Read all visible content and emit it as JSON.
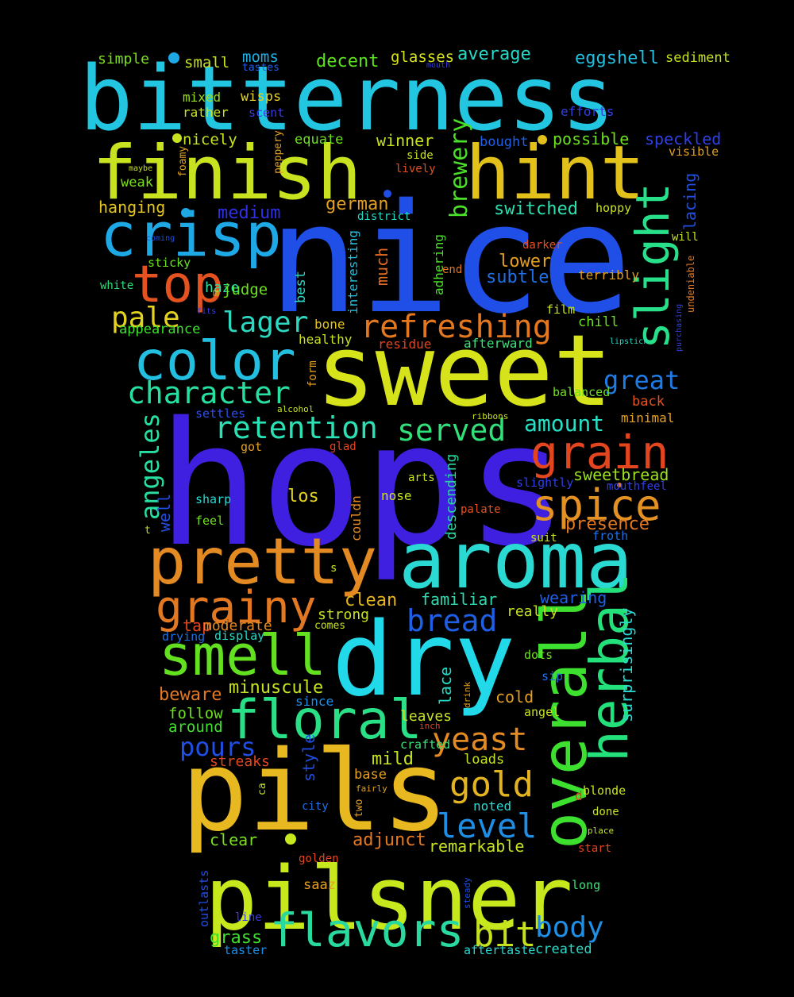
{
  "words": [
    {
      "text": "bitterness",
      "color": "#22c6e0"
    },
    {
      "text": "nice",
      "color": "#1f4fe6"
    },
    {
      "text": "hops",
      "color": "#4020e0"
    },
    {
      "text": "sweet",
      "color": "#d7e31a"
    },
    {
      "text": "dry",
      "color": "#22d9ea"
    },
    {
      "text": "pils",
      "color": "#e8b820"
    },
    {
      "text": "pilsner",
      "color": "#c6e81c"
    },
    {
      "text": "finish",
      "color": "#c9e220"
    },
    {
      "text": "hint",
      "color": "#e2c21a"
    },
    {
      "text": "aroma",
      "color": "#2ad9d2"
    },
    {
      "text": "pretty",
      "color": "#e38a22"
    },
    {
      "text": "smell",
      "color": "#63e01f"
    },
    {
      "text": "color",
      "color": "#23bfe0"
    },
    {
      "text": "crisp",
      "color": "#1ea9e6"
    },
    {
      "text": "floral",
      "color": "#2ae087"
    },
    {
      "text": "overall",
      "color": "#3de02e"
    },
    {
      "text": "herbal",
      "color": "#24e07a"
    },
    {
      "text": "grainy",
      "color": "#e37822"
    },
    {
      "text": "flavors",
      "color": "#2ad9a0"
    },
    {
      "text": "top",
      "color": "#e3521f"
    },
    {
      "text": "grain",
      "color": "#e3451f"
    },
    {
      "text": "spice",
      "color": "#e39122"
    },
    {
      "text": "slight",
      "color": "#27e089"
    },
    {
      "text": "refreshing",
      "color": "#e3781f"
    },
    {
      "text": "character",
      "color": "#27e0a0"
    },
    {
      "text": "retention",
      "color": "#2ae0b5"
    },
    {
      "text": "served",
      "color": "#31e07a"
    },
    {
      "text": "lager",
      "color": "#2ad9c0"
    },
    {
      "text": "pale",
      "color": "#e3d21f"
    },
    {
      "text": "bread",
      "color": "#1f5fe6"
    },
    {
      "text": "yeast",
      "color": "#e38a22"
    },
    {
      "text": "gold",
      "color": "#e3b420"
    },
    {
      "text": "level",
      "color": "#1f8fe6"
    },
    {
      "text": "pours",
      "color": "#1f4fe6"
    },
    {
      "text": "bit",
      "color": "#c6e01c"
    },
    {
      "text": "body",
      "color": "#1f8fe6"
    },
    {
      "text": "great",
      "color": "#1f7be6"
    },
    {
      "text": "angeles",
      "color": "#27e0a0"
    },
    {
      "text": "brewery",
      "color": "#4ae02a"
    },
    {
      "text": "amount",
      "color": "#27e0c6"
    },
    {
      "text": "presence",
      "color": "#e3781f"
    },
    {
      "text": "medium",
      "color": "#3030e6"
    },
    {
      "text": "lower",
      "color": "#e3a020"
    },
    {
      "text": "german",
      "color": "#e3a020"
    },
    {
      "text": "subtle",
      "color": "#1f6fe6"
    },
    {
      "text": "sweetbread",
      "color": "#9ae01c"
    },
    {
      "text": "clean",
      "color": "#e3b420"
    },
    {
      "text": "familiar",
      "color": "#31d9b0"
    },
    {
      "text": "wearing",
      "color": "#1f5fe6"
    },
    {
      "text": "really",
      "color": "#c6e01c"
    },
    {
      "text": "switched",
      "color": "#2ae0b0"
    },
    {
      "text": "winner",
      "color": "#c9e220"
    },
    {
      "text": "possible",
      "color": "#6ce01c"
    },
    {
      "text": "speckled",
      "color": "#2f3fe6"
    },
    {
      "text": "eggshell",
      "color": "#23bfe0"
    },
    {
      "text": "average",
      "color": "#27d9c6"
    },
    {
      "text": "glasses",
      "color": "#d7e31a"
    },
    {
      "text": "decent",
      "color": "#5ae01c"
    },
    {
      "text": "moms",
      "color": "#1fb0e6"
    },
    {
      "text": "small",
      "color": "#c9e220"
    },
    {
      "text": "simple",
      "color": "#7ae01c"
    },
    {
      "text": "sediment",
      "color": "#c6e01c"
    },
    {
      "text": "wisps",
      "color": "#e3d21f"
    },
    {
      "text": "mixed",
      "color": "#9ae01c"
    },
    {
      "text": "rather",
      "color": "#c9e220"
    },
    {
      "text": "scent",
      "color": "#3a3ae6"
    },
    {
      "text": "efforts",
      "color": "#2f3fe6"
    },
    {
      "text": "nicely",
      "color": "#c9e220"
    },
    {
      "text": "equate",
      "color": "#6ce01c"
    },
    {
      "text": "bought",
      "color": "#1f5fe6"
    },
    {
      "text": "visible",
      "color": "#e3a020"
    },
    {
      "text": "weak",
      "color": "#7ae01c"
    },
    {
      "text": "hanging",
      "color": "#e3c420"
    },
    {
      "text": "side",
      "color": "#c9e220"
    },
    {
      "text": "lively",
      "color": "#e3521f"
    },
    {
      "text": "hoppy",
      "color": "#c9e220"
    },
    {
      "text": "lacing",
      "color": "#1f4fe6"
    },
    {
      "text": "will",
      "color": "#c6e01c"
    },
    {
      "text": "district",
      "color": "#27d9c6"
    },
    {
      "text": "adhering",
      "color": "#4ae02a"
    },
    {
      "text": "much",
      "color": "#e36a1f"
    },
    {
      "text": "interesting",
      "color": "#23bfe0"
    },
    {
      "text": "best",
      "color": "#27d9c6"
    },
    {
      "text": "haze",
      "color": "#2fe0a0"
    },
    {
      "text": "judge",
      "color": "#6ce01c"
    },
    {
      "text": "sticky",
      "color": "#6ce01c"
    },
    {
      "text": "white",
      "color": "#27e07a"
    },
    {
      "text": "appearance",
      "color": "#3de02e"
    },
    {
      "text": "darker",
      "color": "#e3521f"
    },
    {
      "text": "end",
      "color": "#e3781f"
    },
    {
      "text": "terribly",
      "color": "#e3a020"
    },
    {
      "text": "film",
      "color": "#c9e220"
    },
    {
      "text": "chill",
      "color": "#6ce01c"
    },
    {
      "text": "bone",
      "color": "#e3c420"
    },
    {
      "text": "healthy",
      "color": "#c9e220"
    },
    {
      "text": "residue",
      "color": "#e3451f"
    },
    {
      "text": "afterward",
      "color": "#3de07a"
    },
    {
      "text": "balanced",
      "color": "#6ce01c"
    },
    {
      "text": "back",
      "color": "#e3521f"
    },
    {
      "text": "minimal",
      "color": "#e3a020"
    },
    {
      "text": "settles",
      "color": "#2f4fe6"
    },
    {
      "text": "form",
      "color": "#e3a020"
    },
    {
      "text": "alcohol",
      "color": "#c9e220"
    },
    {
      "text": "ribbons",
      "color": "#c9e220"
    },
    {
      "text": "got",
      "color": "#e3a020"
    },
    {
      "text": "glad",
      "color": "#e3451f"
    },
    {
      "text": "well",
      "color": "#1f4fe6"
    },
    {
      "text": "sharp",
      "color": "#2ad9d2"
    },
    {
      "text": "feel",
      "color": "#6ce01c"
    },
    {
      "text": "los",
      "color": "#e3d21f"
    },
    {
      "text": "nose",
      "color": "#c9e220"
    },
    {
      "text": "couldn",
      "color": "#e38a22"
    },
    {
      "text": "descending",
      "color": "#27d9a0"
    },
    {
      "text": "arts",
      "color": "#c9e220"
    },
    {
      "text": "slightly",
      "color": "#2f3fe6"
    },
    {
      "text": "mouthfeel",
      "color": "#2f3fe6"
    },
    {
      "text": "palate",
      "color": "#e3521f"
    },
    {
      "text": "suit",
      "color": "#c9e220"
    },
    {
      "text": "froth",
      "color": "#1f6fe6"
    },
    {
      "text": "tap",
      "color": "#e3451f"
    },
    {
      "text": "moderate",
      "color": "#e38a22"
    },
    {
      "text": "strong",
      "color": "#c9e220"
    },
    {
      "text": "comes",
      "color": "#c9e220"
    },
    {
      "text": "drying",
      "color": "#1f6fe6"
    },
    {
      "text": "display",
      "color": "#27d9c6"
    },
    {
      "text": "surprisingly",
      "color": "#2ad9d2"
    },
    {
      "text": "minuscule",
      "color": "#c9e220"
    },
    {
      "text": "beware",
      "color": "#e3781f"
    },
    {
      "text": "since",
      "color": "#1f8fe6"
    },
    {
      "text": "lace",
      "color": "#27d9c6"
    },
    {
      "text": "drink",
      "color": "#e3a020"
    },
    {
      "text": "cold",
      "color": "#e3a020"
    },
    {
      "text": "dots",
      "color": "#6ce01c"
    },
    {
      "text": "sip",
      "color": "#1f6fe6"
    },
    {
      "text": "angel",
      "color": "#c9e220"
    },
    {
      "text": "follow",
      "color": "#6ce01c"
    },
    {
      "text": "around",
      "color": "#3de02e"
    },
    {
      "text": "leaves",
      "color": "#c9e220"
    },
    {
      "text": "inch",
      "color": "#e3451f"
    },
    {
      "text": "crafted",
      "color": "#3de07a"
    },
    {
      "text": "streaks",
      "color": "#e3451f"
    },
    {
      "text": "mild",
      "color": "#c9e220"
    },
    {
      "text": "loads",
      "color": "#c9e220"
    },
    {
      "text": "style",
      "color": "#1f4fe6"
    },
    {
      "text": "base",
      "color": "#e3a020"
    },
    {
      "text": "fairly",
      "color": "#e3a020"
    },
    {
      "text": "two",
      "color": "#e3a020"
    },
    {
      "text": "ca",
      "color": "#c9e220"
    },
    {
      "text": "city",
      "color": "#1f6fe6"
    },
    {
      "text": "noted",
      "color": "#2ad9d2"
    },
    {
      "text": "blonde",
      "color": "#c9e220"
    },
    {
      "text": "done",
      "color": "#c9e220"
    },
    {
      "text": "place",
      "color": "#c9e220"
    },
    {
      "text": "start",
      "color": "#e3451f"
    },
    {
      "text": "clear",
      "color": "#7ae01c"
    },
    {
      "text": "adjunct",
      "color": "#e3781f"
    },
    {
      "text": "remarkable",
      "color": "#c9e220"
    },
    {
      "text": "golden",
      "color": "#e3451f"
    },
    {
      "text": "saaz",
      "color": "#e3a020"
    },
    {
      "text": "steady",
      "color": "#1f4fe6"
    },
    {
      "text": "long",
      "color": "#3de07a"
    },
    {
      "text": "outlasts",
      "color": "#1f4fe6"
    },
    {
      "text": "line",
      "color": "#3a3ae6"
    },
    {
      "text": "grass",
      "color": "#3de02e"
    },
    {
      "text": "taster",
      "color": "#1f8fe6"
    },
    {
      "text": "aftertaste",
      "color": "#2ad9d2"
    },
    {
      "text": "created",
      "color": "#2ad9c6"
    },
    {
      "text": "tastes",
      "color": "#1f5fe6"
    },
    {
      "text": "mouth",
      "color": "#3a3ae6"
    },
    {
      "text": "maybe",
      "color": "#c9e220"
    },
    {
      "text": "foamy",
      "color": "#e3a020"
    },
    {
      "text": "peppery",
      "color": "#e3a020"
    },
    {
      "text": "coming",
      "color": "#1f4fe6"
    },
    {
      "text": "m",
      "color": "#e3c420"
    },
    {
      "text": "fits",
      "color": "#3a3ae6"
    },
    {
      "text": "purchasing",
      "color": "#2f3fe6"
    },
    {
      "text": "undeniable",
      "color": "#e3781f"
    },
    {
      "text": "lipstick",
      "color": "#27d9c6"
    },
    {
      "text": "t",
      "color": "#c9e220"
    },
    {
      "text": "s",
      "color": "#c9e220"
    },
    {
      "text": "d",
      "color": "#e3451f"
    }
  ]
}
